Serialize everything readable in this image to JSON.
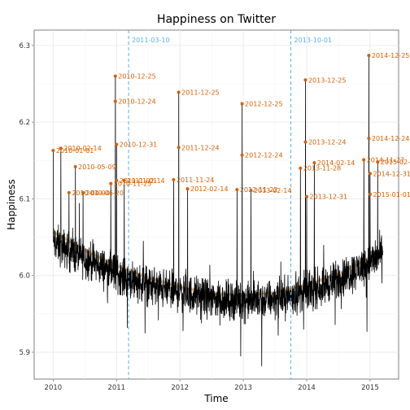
{
  "chart_data": {
    "type": "line",
    "title": "Happiness on Twitter",
    "xlabel": "Time",
    "ylabel": "Happiness",
    "xlim": [
      2009.7,
      2015.45
    ],
    "ylim": [
      5.865,
      6.32
    ],
    "x_ticks": [
      {
        "value": 2010,
        "label": "2010"
      },
      {
        "value": 2011,
        "label": "2011"
      },
      {
        "value": 2012,
        "label": "2012"
      },
      {
        "value": 2013,
        "label": "2013"
      },
      {
        "value": 2014,
        "label": "2014"
      },
      {
        "value": 2015,
        "label": "2015"
      }
    ],
    "y_ticks": [
      {
        "value": 5.9,
        "label": "5.9"
      },
      {
        "value": 6.0,
        "label": "6.0"
      },
      {
        "value": 6.1,
        "label": "6.1"
      },
      {
        "value": 6.2,
        "label": "6.2"
      },
      {
        "value": 6.3,
        "label": "6.3"
      }
    ],
    "grid": true,
    "colors": {
      "series": "#000000",
      "smooth": "#e8a33c",
      "smooth_band": "#bbbbbb",
      "peak": "#d95f02",
      "vline": "#56b4e9",
      "panel_border": "#7f7f7f",
      "grid_major": "#ebebeb",
      "grid_minor": "#f5f5f5"
    },
    "vertical_lines": [
      {
        "x": 2011.19,
        "label": "2011-03-10"
      },
      {
        "x": 2013.75,
        "label": "2013-10-01"
      }
    ],
    "smooth": {
      "x": [
        2010.0,
        2010.5,
        2011.0,
        2011.5,
        2012.0,
        2012.5,
        2013.0,
        2013.5,
        2014.0,
        2014.5,
        2015.0,
        2015.2
      ],
      "y": [
        6.057,
        6.033,
        6.013,
        5.997,
        5.985,
        5.977,
        5.974,
        5.978,
        5.988,
        6.002,
        6.023,
        6.033
      ]
    },
    "baseline": {
      "x": [
        2010.0,
        2010.25,
        2010.5,
        2010.75,
        2011.0,
        2011.25,
        2011.5,
        2011.75,
        2012.0,
        2012.25,
        2012.5,
        2012.75,
        2013.0,
        2013.25,
        2013.5,
        2013.75,
        2014.0,
        2014.25,
        2014.5,
        2014.75,
        2015.0,
        2015.2
      ],
      "y": [
        6.043,
        6.032,
        6.022,
        6.012,
        6.003,
        5.995,
        5.988,
        5.982,
        5.978,
        5.974,
        5.97,
        5.968,
        5.967,
        5.968,
        5.97,
        5.974,
        5.979,
        5.986,
        5.995,
        6.006,
        6.018,
        6.028
      ]
    },
    "dips": [
      {
        "x": 2011.17,
        "y": 5.932
      },
      {
        "x": 2011.45,
        "y": 5.925
      },
      {
        "x": 2011.66,
        "y": 5.942
      },
      {
        "x": 2012.05,
        "y": 5.928
      },
      {
        "x": 2012.34,
        "y": 5.938
      },
      {
        "x": 2012.63,
        "y": 5.935
      },
      {
        "x": 2012.96,
        "y": 5.895
      },
      {
        "x": 2013.12,
        "y": 5.915
      },
      {
        "x": 2013.29,
        "y": 5.882
      },
      {
        "x": 2013.55,
        "y": 5.922
      },
      {
        "x": 2013.95,
        "y": 5.93
      },
      {
        "x": 2014.45,
        "y": 5.936
      },
      {
        "x": 2014.95,
        "y": 5.927
      },
      {
        "x": 2015.12,
        "y": 5.97
      }
    ],
    "peaks": [
      {
        "x": 2010.0,
        "y": 6.163,
        "label": "2010-01-01"
      },
      {
        "x": 2010.12,
        "y": 6.166,
        "label": "2010-02-14"
      },
      {
        "x": 2010.35,
        "y": 6.142,
        "label": "2010-05-09"
      },
      {
        "x": 2010.25,
        "y": 6.108,
        "label": "2010-04-04"
      },
      {
        "x": 2010.47,
        "y": 6.108,
        "label": "2010-06-20"
      },
      {
        "x": 2010.91,
        "y": 6.12,
        "label": "2010-11-25"
      },
      {
        "x": 2010.98,
        "y": 6.26,
        "label": "2010-12-25"
      },
      {
        "x": 2010.98,
        "y": 6.227,
        "label": "2010-12-24"
      },
      {
        "x": 2011.0,
        "y": 6.171,
        "label": "2010-12-31"
      },
      {
        "x": 2011.0,
        "y": 6.124,
        "label": "2011-01-01"
      },
      {
        "x": 2011.12,
        "y": 6.124,
        "label": "2011-02-14"
      },
      {
        "x": 2011.9,
        "y": 6.125,
        "label": "2011-11-24"
      },
      {
        "x": 2011.98,
        "y": 6.239,
        "label": "2011-12-25"
      },
      {
        "x": 2011.98,
        "y": 6.167,
        "label": "2011-12-24"
      },
      {
        "x": 2012.12,
        "y": 6.113,
        "label": "2012-02-14"
      },
      {
        "x": 2012.9,
        "y": 6.112,
        "label": "2012-11-22"
      },
      {
        "x": 2012.98,
        "y": 6.224,
        "label": "2012-12-25"
      },
      {
        "x": 2012.98,
        "y": 6.157,
        "label": "2012-12-24"
      },
      {
        "x": 2013.12,
        "y": 6.111,
        "label": "2013-02-14"
      },
      {
        "x": 2013.9,
        "y": 6.14,
        "label": "2013-11-28"
      },
      {
        "x": 2013.98,
        "y": 6.255,
        "label": "2013-12-25"
      },
      {
        "x": 2013.98,
        "y": 6.174,
        "label": "2013-12-24"
      },
      {
        "x": 2014.0,
        "y": 6.103,
        "label": "2013-12-31"
      },
      {
        "x": 2014.12,
        "y": 6.147,
        "label": "2014-02-14"
      },
      {
        "x": 2014.9,
        "y": 6.151,
        "label": "2014-11-27"
      },
      {
        "x": 2014.98,
        "y": 6.287,
        "label": "2014-12-25"
      },
      {
        "x": 2014.98,
        "y": 6.179,
        "label": "2014-12-24"
      },
      {
        "x": 2015.0,
        "y": 6.133,
        "label": "2014-12-31"
      },
      {
        "x": 2015.0,
        "y": 6.106,
        "label": "2015-01-01"
      },
      {
        "x": 2015.12,
        "y": 6.148,
        "label": "2015-02-14"
      }
    ]
  }
}
